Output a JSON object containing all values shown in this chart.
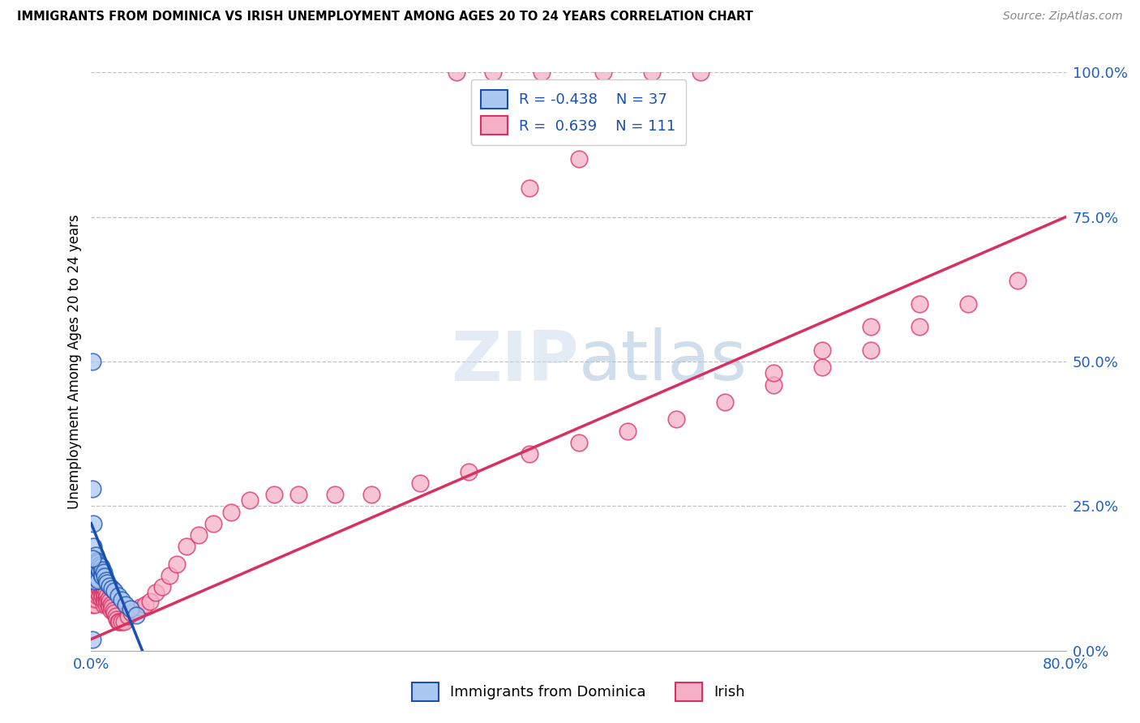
{
  "title": "IMMIGRANTS FROM DOMINICA VS IRISH UNEMPLOYMENT AMONG AGES 20 TO 24 YEARS CORRELATION CHART",
  "source": "Source: ZipAtlas.com",
  "ylabel": "Unemployment Among Ages 20 to 24 years",
  "xlim": [
    0.0,
    0.8
  ],
  "ylim": [
    0.0,
    1.0
  ],
  "dominica_R": -0.438,
  "dominica_N": 37,
  "irish_R": 0.639,
  "irish_N": 111,
  "dominica_color": "#aac8f0",
  "irish_color": "#f5b0c8",
  "dominica_line_color": "#1a50b0",
  "irish_line_color": "#d83060",
  "irish_line_x0": 0.0,
  "irish_line_y0": 0.02,
  "irish_line_x1": 0.8,
  "irish_line_y1": 0.75,
  "dom_line_x0": 0.0,
  "dom_line_y0": 0.22,
  "dom_line_x1": 0.042,
  "dom_line_y1": 0.0,
  "dominica_x": [
    0.001,
    0.001,
    0.002,
    0.002,
    0.002,
    0.003,
    0.003,
    0.003,
    0.004,
    0.004,
    0.004,
    0.005,
    0.005,
    0.005,
    0.006,
    0.006,
    0.006,
    0.007,
    0.007,
    0.008,
    0.008,
    0.009,
    0.009,
    0.01,
    0.011,
    0.012,
    0.013,
    0.015,
    0.017,
    0.019,
    0.022,
    0.025,
    0.028,
    0.032,
    0.037,
    0.001,
    0.001
  ],
  "dominica_y": [
    0.5,
    0.28,
    0.22,
    0.18,
    0.15,
    0.155,
    0.14,
    0.12,
    0.165,
    0.15,
    0.13,
    0.155,
    0.145,
    0.125,
    0.152,
    0.142,
    0.122,
    0.148,
    0.138,
    0.145,
    0.132,
    0.14,
    0.128,
    0.135,
    0.128,
    0.122,
    0.118,
    0.112,
    0.108,
    0.103,
    0.095,
    0.088,
    0.08,
    0.072,
    0.062,
    0.16,
    0.02
  ],
  "irish_x": [
    0.001,
    0.001,
    0.001,
    0.002,
    0.002,
    0.002,
    0.002,
    0.003,
    0.003,
    0.003,
    0.003,
    0.003,
    0.003,
    0.004,
    0.004,
    0.004,
    0.004,
    0.004,
    0.005,
    0.005,
    0.005,
    0.005,
    0.005,
    0.006,
    0.006,
    0.006,
    0.006,
    0.007,
    0.007,
    0.007,
    0.007,
    0.008,
    0.008,
    0.008,
    0.008,
    0.009,
    0.009,
    0.009,
    0.01,
    0.01,
    0.01,
    0.01,
    0.011,
    0.011,
    0.011,
    0.012,
    0.012,
    0.012,
    0.013,
    0.013,
    0.014,
    0.014,
    0.015,
    0.015,
    0.016,
    0.016,
    0.017,
    0.018,
    0.019,
    0.02,
    0.021,
    0.022,
    0.023,
    0.025,
    0.027,
    0.03,
    0.033,
    0.036,
    0.04,
    0.044,
    0.048,
    0.053,
    0.058,
    0.064,
    0.07,
    0.078,
    0.088,
    0.1,
    0.115,
    0.13,
    0.15,
    0.17,
    0.2,
    0.23,
    0.27,
    0.31,
    0.36,
    0.4,
    0.44,
    0.48,
    0.52,
    0.56,
    0.6,
    0.64,
    0.68,
    0.72,
    0.76,
    0.56,
    0.6,
    0.64,
    0.68,
    0.36,
    0.4,
    0.44,
    0.48,
    0.3,
    0.33,
    0.37,
    0.42,
    0.46,
    0.5
  ],
  "irish_y": [
    0.12,
    0.1,
    0.08,
    0.13,
    0.12,
    0.1,
    0.09,
    0.13,
    0.12,
    0.11,
    0.1,
    0.09,
    0.08,
    0.13,
    0.12,
    0.11,
    0.1,
    0.09,
    0.135,
    0.125,
    0.115,
    0.105,
    0.095,
    0.13,
    0.12,
    0.11,
    0.1,
    0.125,
    0.115,
    0.105,
    0.095,
    0.12,
    0.11,
    0.1,
    0.09,
    0.115,
    0.105,
    0.095,
    0.11,
    0.1,
    0.09,
    0.08,
    0.105,
    0.095,
    0.085,
    0.1,
    0.09,
    0.08,
    0.095,
    0.085,
    0.09,
    0.08,
    0.085,
    0.075,
    0.08,
    0.07,
    0.075,
    0.07,
    0.065,
    0.06,
    0.055,
    0.05,
    0.05,
    0.05,
    0.05,
    0.06,
    0.065,
    0.07,
    0.075,
    0.08,
    0.085,
    0.1,
    0.11,
    0.13,
    0.15,
    0.18,
    0.2,
    0.22,
    0.24,
    0.26,
    0.27,
    0.27,
    0.27,
    0.27,
    0.29,
    0.31,
    0.34,
    0.36,
    0.38,
    0.4,
    0.43,
    0.46,
    0.49,
    0.52,
    0.56,
    0.6,
    0.64,
    0.48,
    0.52,
    0.56,
    0.6,
    0.8,
    0.85,
    0.89,
    0.92,
    1.0,
    1.0,
    1.0,
    1.0,
    1.0,
    1.0
  ]
}
